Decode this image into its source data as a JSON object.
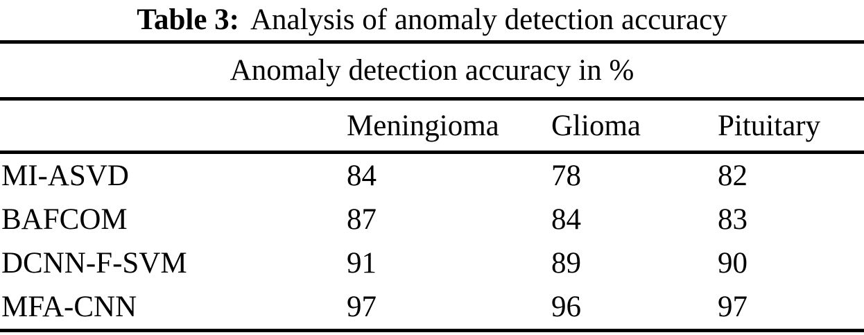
{
  "caption": {
    "label": "Table 3:",
    "text": "Analysis of anomaly detection accuracy"
  },
  "table": {
    "span_header": "Anomaly detection accuracy in %",
    "columns": [
      "Meningioma",
      "Glioma",
      "Pituitary"
    ],
    "rows": [
      {
        "method": "MI-ASVD",
        "values": [
          "84",
          "78",
          "82"
        ]
      },
      {
        "method": "BAFCOM",
        "values": [
          "87",
          "84",
          "83"
        ]
      },
      {
        "method": "DCNN-F-SVM",
        "values": [
          "91",
          "89",
          "90"
        ]
      },
      {
        "method": "MFA-CNN",
        "values": [
          "97",
          "96",
          "97"
        ]
      }
    ]
  },
  "chart_data": {
    "type": "table",
    "title": "Table 3: Analysis of anomaly detection accuracy",
    "subtitle": "Anomaly detection accuracy in %",
    "categories": [
      "Meningioma",
      "Glioma",
      "Pituitary"
    ],
    "series": [
      {
        "name": "MI-ASVD",
        "values": [
          84,
          78,
          82
        ]
      },
      {
        "name": "BAFCOM",
        "values": [
          87,
          84,
          83
        ]
      },
      {
        "name": "DCNN-F-SVM",
        "values": [
          91,
          89,
          90
        ]
      },
      {
        "name": "MFA-CNN",
        "values": [
          97,
          96,
          97
        ]
      }
    ]
  },
  "colors": {
    "text": "#000000",
    "background": "#ffffff",
    "rule": "#000000"
  }
}
